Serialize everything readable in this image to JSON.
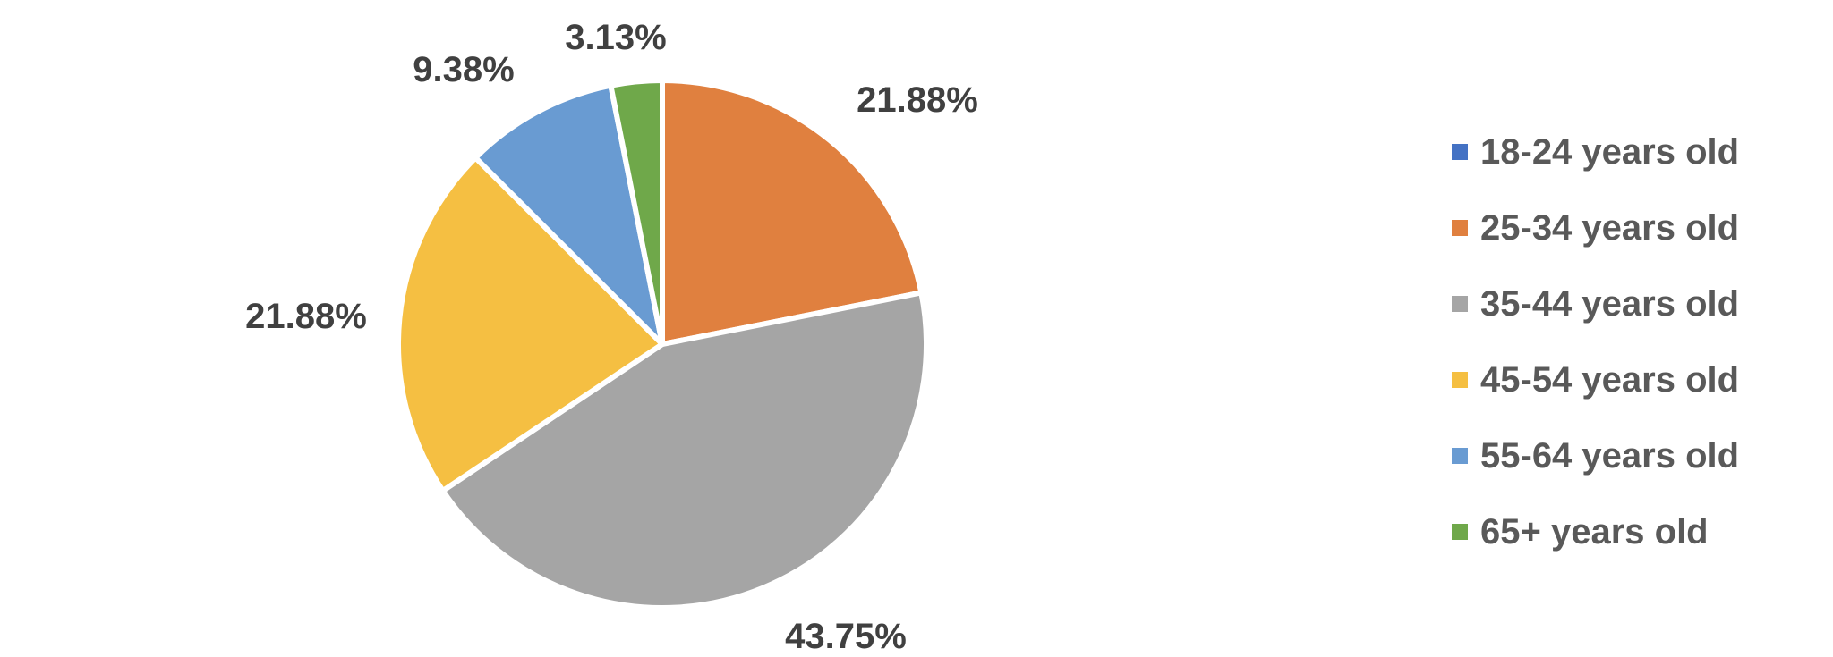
{
  "chart_data": {
    "type": "pie",
    "categories": [
      "18-24 years old",
      "25-34 years old",
      "35-44 years old",
      "45-54 years old",
      "55-64 years old",
      "65+ years old"
    ],
    "values": [
      0,
      21.88,
      43.75,
      21.88,
      9.38,
      3.13
    ],
    "data_labels": [
      "",
      "21.88%",
      "43.75%",
      "21.88%",
      "9.38%",
      "3.13%"
    ],
    "colors": [
      "#4472C4",
      "#E0803F",
      "#A5A5A5",
      "#F5BF42",
      "#699BD2",
      "#6FA84A"
    ],
    "start": "12 o'clock",
    "direction": "clockwise",
    "legend": "right",
    "title": ""
  }
}
